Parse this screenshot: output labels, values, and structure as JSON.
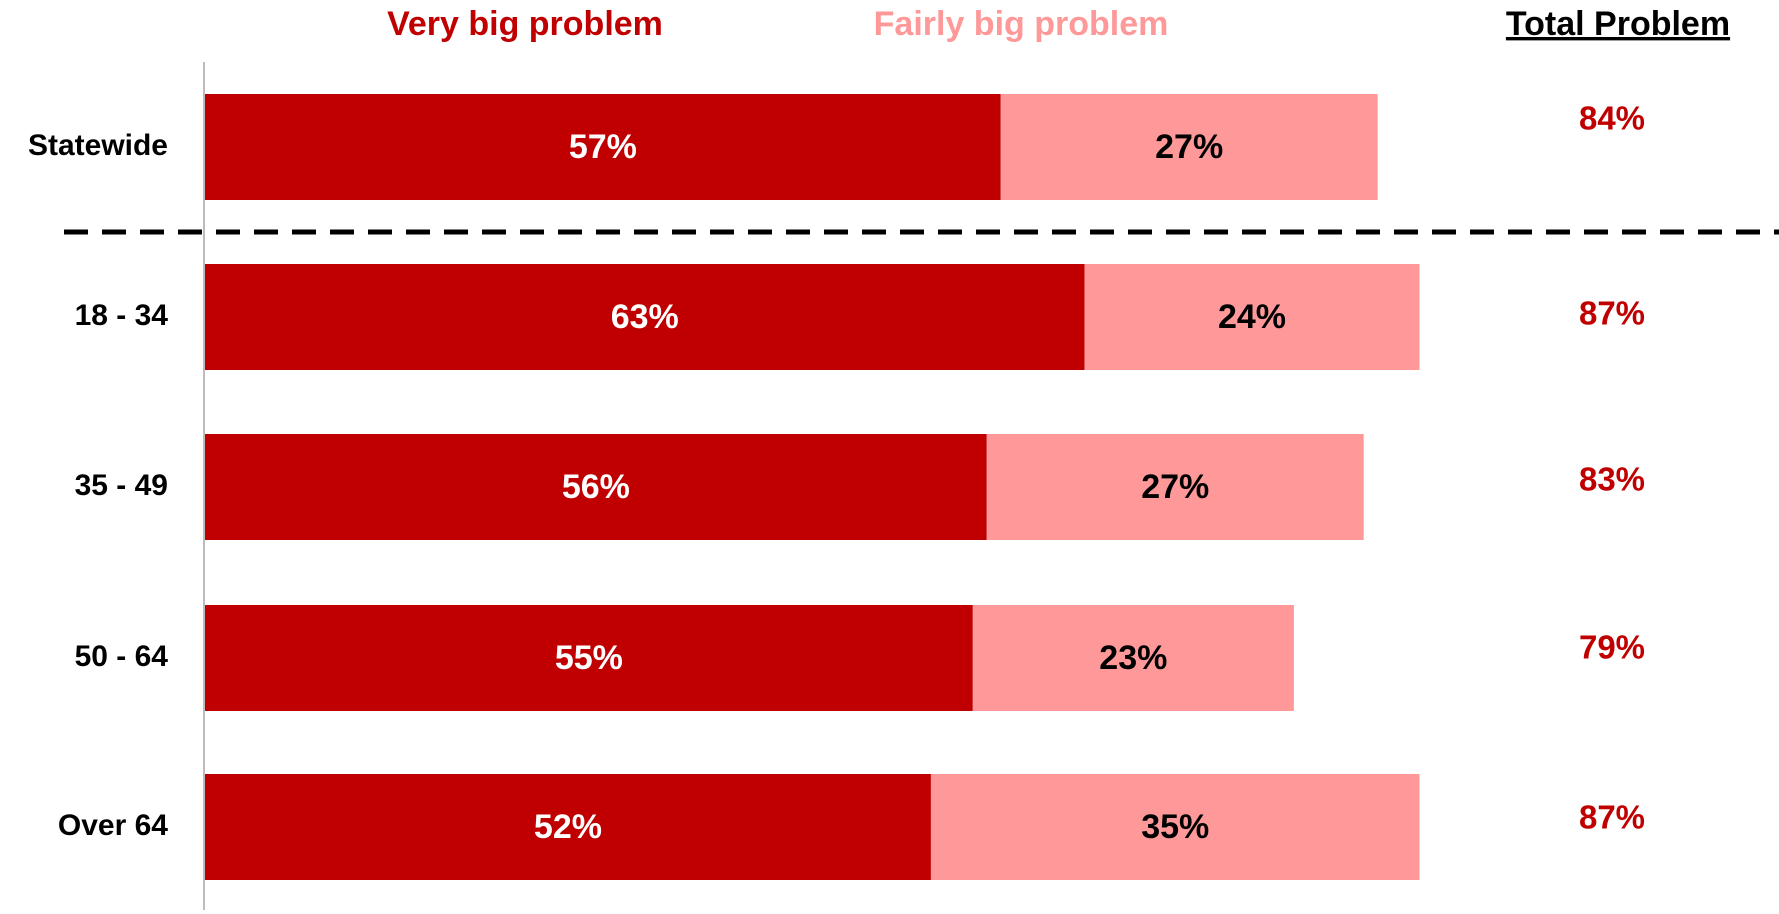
{
  "chart_data": {
    "type": "stacked-bar-horizontal",
    "categories": [
      "Statewide",
      "18 - 34",
      "35 - 49",
      "50 - 64",
      "Over 64"
    ],
    "series": [
      {
        "name": "Very big problem",
        "color": "#c00000",
        "values": [
          57,
          63,
          56,
          55,
          52
        ],
        "value_labels": [
          "57%",
          "63%",
          "56%",
          "55%",
          "52%"
        ]
      },
      {
        "name": "Fairly big problem",
        "color": "#ff9999",
        "values": [
          27,
          24,
          27,
          23,
          35
        ],
        "value_labels": [
          "27%",
          "24%",
          "27%",
          "23%",
          "35%"
        ]
      }
    ],
    "totals": {
      "title": "Total Problem",
      "values": [
        84,
        87,
        83,
        79,
        87
      ],
      "value_labels": [
        "84%",
        "87%",
        "83%",
        "79%",
        "87%"
      ]
    }
  }
}
